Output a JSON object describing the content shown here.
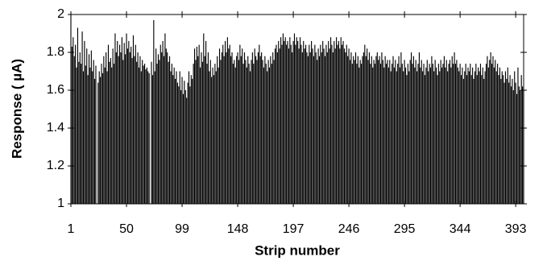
{
  "chart_data": {
    "type": "bar",
    "x_label": "Strip number",
    "y_label": "Response ( µA)",
    "color": "#000000",
    "xlim": [
      1,
      400
    ],
    "xticks": [
      1,
      50,
      99,
      148,
      197,
      246,
      295,
      344,
      393
    ],
    "ylim": [
      1,
      2
    ],
    "yticks": [
      1,
      {
        "value": 1.2,
        "label": "1.2"
      },
      {
        "value": 1.4,
        "label": "1.4"
      },
      {
        "value": 1.6,
        "label": "1.6"
      },
      {
        "value": 1.8,
        "label": "1.8"
      },
      2
    ],
    "x": [
      1,
      2,
      3,
      4,
      5,
      6,
      7,
      8,
      9,
      10,
      11,
      12,
      13,
      14,
      15,
      16,
      17,
      18,
      19,
      20,
      21,
      22,
      23,
      24,
      25,
      26,
      27,
      28,
      29,
      30,
      31,
      32,
      33,
      34,
      35,
      36,
      37,
      38,
      39,
      40,
      41,
      42,
      43,
      44,
      45,
      46,
      47,
      48,
      49,
      50,
      51,
      52,
      53,
      54,
      55,
      56,
      57,
      58,
      59,
      60,
      61,
      62,
      63,
      64,
      65,
      66,
      67,
      68,
      69,
      70,
      71,
      72,
      73,
      74,
      75,
      76,
      77,
      78,
      79,
      80,
      81,
      82,
      83,
      84,
      85,
      86,
      87,
      88,
      89,
      90,
      91,
      92,
      93,
      94,
      95,
      96,
      97,
      98,
      99,
      100,
      101,
      102,
      103,
      104,
      105,
      106,
      107,
      108,
      109,
      110,
      111,
      112,
      113,
      114,
      115,
      116,
      117,
      118,
      119,
      120,
      121,
      122,
      123,
      124,
      125,
      126,
      127,
      128,
      129,
      130,
      131,
      132,
      133,
      134,
      135,
      136,
      137,
      138,
      139,
      140,
      141,
      142,
      143,
      144,
      145,
      146,
      147,
      148,
      149,
      150,
      151,
      152,
      153,
      154,
      155,
      156,
      157,
      158,
      159,
      160,
      161,
      162,
      163,
      164,
      165,
      166,
      167,
      168,
      169,
      170,
      171,
      172,
      173,
      174,
      175,
      176,
      177,
      178,
      179,
      180,
      181,
      182,
      183,
      184,
      185,
      186,
      187,
      188,
      189,
      190,
      191,
      192,
      193,
      194,
      195,
      196,
      197,
      198,
      199,
      200,
      201,
      202,
      203,
      204,
      205,
      206,
      207,
      208,
      209,
      210,
      211,
      212,
      213,
      214,
      215,
      216,
      217,
      218,
      219,
      220,
      221,
      222,
      223,
      224,
      225,
      226,
      227,
      228,
      229,
      230,
      231,
      232,
      233,
      234,
      235,
      236,
      237,
      238,
      239,
      240,
      241,
      242,
      243,
      244,
      245,
      246,
      247,
      248,
      249,
      250,
      251,
      252,
      253,
      254,
      255,
      256,
      257,
      258,
      259,
      260,
      261,
      262,
      263,
      264,
      265,
      266,
      267,
      268,
      269,
      270,
      271,
      272,
      273,
      274,
      275,
      276,
      277,
      278,
      279,
      280,
      281,
      282,
      283,
      284,
      285,
      286,
      287,
      288,
      289,
      290,
      291,
      292,
      293,
      294,
      295,
      296,
      297,
      298,
      299,
      300,
      301,
      302,
      303,
      304,
      305,
      306,
      307,
      308,
      309,
      310,
      311,
      312,
      313,
      314,
      315,
      316,
      317,
      318,
      319,
      320,
      321,
      322,
      323,
      324,
      325,
      326,
      327,
      328,
      329,
      330,
      331,
      332,
      333,
      334,
      335,
      336,
      337,
      338,
      339,
      340,
      341,
      342,
      343,
      344,
      345,
      346,
      347,
      348,
      349,
      350,
      351,
      352,
      353,
      354,
      355,
      356,
      357,
      358,
      359,
      360,
      361,
      362,
      363,
      364,
      365,
      366,
      367,
      368,
      369,
      370,
      371,
      372,
      373,
      374,
      375,
      376,
      377,
      378,
      379,
      380,
      381,
      382,
      383,
      384,
      385,
      386,
      387,
      388,
      389,
      390,
      391,
      392,
      393,
      394,
      395,
      396,
      397,
      398,
      399,
      400
    ],
    "values": [
      2.0,
      1.83,
      1.88,
      1.78,
      1.84,
      1.72,
      1.93,
      1.75,
      1.8,
      1.74,
      1.91,
      1.7,
      1.86,
      1.73,
      1.82,
      1.68,
      1.79,
      1.72,
      1.81,
      1.7,
      1.76,
      1.66,
      1.73,
      1.0,
      1.64,
      1.7,
      1.67,
      1.74,
      1.69,
      1.78,
      1.72,
      1.8,
      1.7,
      1.84,
      1.75,
      1.77,
      1.72,
      1.82,
      1.74,
      1.9,
      1.8,
      1.86,
      1.78,
      1.84,
      1.8,
      1.88,
      1.76,
      1.85,
      1.79,
      1.9,
      1.82,
      1.86,
      1.8,
      1.83,
      1.77,
      1.89,
      1.78,
      1.84,
      1.75,
      1.8,
      1.72,
      1.78,
      1.7,
      1.76,
      1.73,
      1.74,
      1.71,
      1.72,
      1.7,
      1.69,
      1.0,
      1.75,
      1.68,
      1.97,
      1.7,
      1.82,
      1.74,
      1.79,
      1.76,
      1.84,
      1.8,
      1.86,
      1.78,
      1.9,
      1.82,
      1.8,
      1.75,
      1.78,
      1.7,
      1.74,
      1.68,
      1.72,
      1.66,
      1.7,
      1.64,
      1.62,
      1.7,
      1.6,
      1.67,
      1.58,
      1.65,
      1.6,
      1.56,
      1.64,
      1.7,
      1.62,
      1.68,
      1.66,
      1.74,
      1.82,
      1.76,
      1.83,
      1.78,
      1.84,
      1.72,
      1.8,
      1.75,
      1.9,
      1.78,
      1.86,
      1.74,
      1.8,
      1.7,
      1.76,
      1.67,
      1.72,
      1.68,
      1.74,
      1.7,
      1.78,
      1.72,
      1.82,
      1.76,
      1.8,
      1.84,
      1.78,
      1.86,
      1.8,
      1.88,
      1.82,
      1.84,
      1.78,
      1.8,
      1.74,
      1.76,
      1.72,
      1.78,
      1.8,
      1.76,
      1.84,
      1.78,
      1.82,
      1.74,
      1.8,
      1.76,
      1.72,
      1.78,
      1.74,
      1.7,
      1.76,
      1.8,
      1.74,
      1.82,
      1.78,
      1.76,
      1.8,
      1.84,
      1.78,
      1.8,
      1.76,
      1.72,
      1.78,
      1.74,
      1.7,
      1.76,
      1.72,
      1.78,
      1.74,
      1.8,
      1.76,
      1.82,
      1.84,
      1.8,
      1.86,
      1.82,
      1.88,
      1.84,
      1.9,
      1.86,
      1.88,
      1.84,
      1.86,
      1.82,
      1.88,
      1.84,
      1.8,
      1.86,
      1.9,
      1.84,
      1.88,
      1.86,
      1.82,
      1.88,
      1.84,
      1.8,
      1.86,
      1.82,
      1.84,
      1.8,
      1.78,
      1.84,
      1.8,
      1.86,
      1.82,
      1.78,
      1.84,
      1.8,
      1.76,
      1.82,
      1.78,
      1.84,
      1.8,
      1.86,
      1.82,
      1.78,
      1.84,
      1.8,
      1.86,
      1.82,
      1.88,
      1.84,
      1.8,
      1.86,
      1.82,
      1.88,
      1.84,
      1.86,
      1.82,
      1.88,
      1.84,
      1.86,
      1.82,
      1.8,
      1.84,
      1.78,
      1.82,
      1.76,
      1.8,
      1.74,
      1.78,
      1.76,
      1.8,
      1.74,
      1.78,
      1.72,
      1.76,
      1.74,
      1.78,
      1.8,
      1.84,
      1.78,
      1.82,
      1.76,
      1.8,
      1.74,
      1.78,
      1.72,
      1.76,
      1.74,
      1.78,
      1.8,
      1.76,
      1.78,
      1.74,
      1.8,
      1.76,
      1.72,
      1.78,
      1.74,
      1.76,
      1.72,
      1.76,
      1.7,
      1.74,
      1.78,
      1.72,
      1.76,
      1.7,
      1.74,
      1.78,
      1.72,
      1.8,
      1.74,
      1.7,
      1.76,
      1.72,
      1.68,
      1.74,
      1.7,
      1.76,
      1.8,
      1.74,
      1.78,
      1.72,
      1.76,
      1.7,
      1.74,
      1.8,
      1.72,
      1.76,
      1.7,
      1.74,
      1.68,
      1.72,
      1.76,
      1.7,
      1.74,
      1.72,
      1.78,
      1.74,
      1.7,
      1.76,
      1.72,
      1.68,
      1.74,
      1.7,
      1.76,
      1.72,
      1.74,
      1.78,
      1.72,
      1.76,
      1.7,
      1.74,
      1.76,
      1.72,
      1.78,
      1.74,
      1.8,
      1.74,
      1.76,
      1.72,
      1.7,
      1.74,
      1.68,
      1.72,
      1.66,
      1.7,
      1.74,
      1.68,
      1.72,
      1.7,
      1.74,
      1.68,
      1.72,
      1.66,
      1.7,
      1.74,
      1.68,
      1.72,
      1.7,
      1.74,
      1.68,
      1.72,
      1.66,
      1.7,
      1.74,
      1.78,
      1.72,
      1.76,
      1.8,
      1.74,
      1.78,
      1.72,
      1.76,
      1.7,
      1.74,
      1.68,
      1.72,
      1.66,
      1.7,
      1.68,
      1.64,
      1.7,
      1.66,
      1.72,
      1.64,
      1.68,
      1.62,
      1.66,
      1.6,
      1.7,
      1.64,
      1.58,
      1.72,
      1.62,
      1.6,
      1.68,
      1.62,
      1.6
    ]
  }
}
